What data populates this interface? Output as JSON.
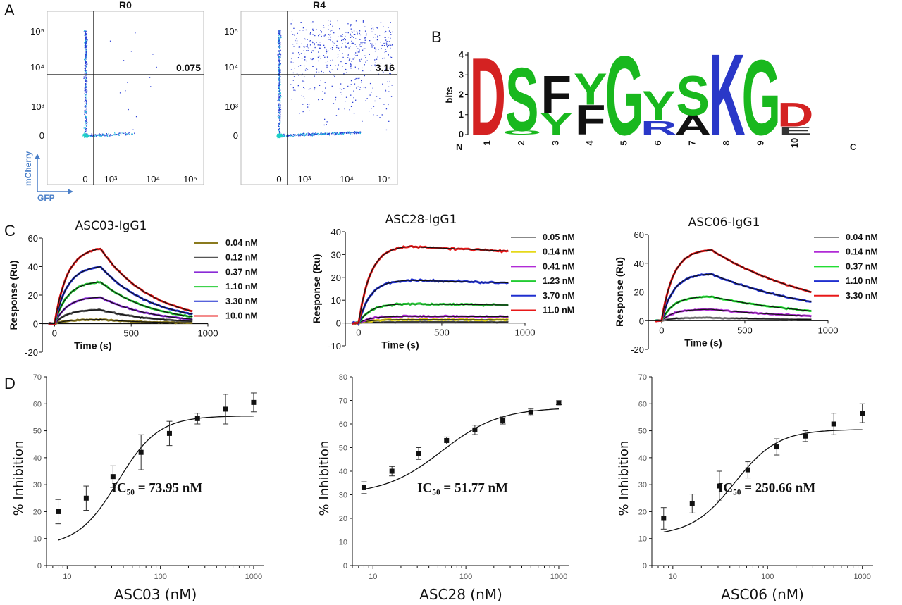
{
  "panels": {
    "A": "A",
    "B": "B",
    "C": "C",
    "D": "D"
  },
  "colors": {
    "dot_blue": "#2b3fd6",
    "dot_cyan": "#22c3e0",
    "axis_blue": "#4a7fc8"
  },
  "chart_data": [
    {
      "id": "flow_R0",
      "type": "scatter",
      "title": "R0",
      "xlabel": "GFP",
      "ylabel": "mCherry",
      "xticks": [
        "0",
        "10³",
        "10⁴",
        "10⁵"
      ],
      "yticks": [
        "10⁵",
        "10⁴",
        "10³",
        "0"
      ],
      "quadrant_value": "0.075"
    },
    {
      "id": "flow_R4",
      "type": "scatter",
      "title": "R4",
      "xticks": [
        "0",
        "10³",
        "10⁴",
        "10⁵"
      ],
      "yticks": [
        "10⁵",
        "10⁴",
        "10³",
        "0"
      ],
      "quadrant_value": "3.16"
    },
    {
      "id": "logo",
      "type": "bar",
      "title": "",
      "ylabel": "bits",
      "yticks": [
        "0",
        "1",
        "2",
        "3",
        "4"
      ],
      "positions": [
        "1",
        "2",
        "3",
        "4",
        "5",
        "6",
        "7",
        "8",
        "9",
        "10"
      ],
      "n_label": "N",
      "c_label": "C",
      "columns": [
        [
          {
            "letter": "D",
            "bits": 3.9,
            "color": "#d42222"
          }
        ],
        [
          {
            "letter": "S",
            "bits": 3.2,
            "color": "#19b81e"
          },
          {
            "letter": "O",
            "bits": 0.2,
            "color": "#19b81e"
          }
        ],
        [
          {
            "letter": "F",
            "bits": 1.9,
            "color": "#111111"
          },
          {
            "letter": "Y",
            "bits": 1.1,
            "color": "#19b81e"
          }
        ],
        [
          {
            "letter": "Y",
            "bits": 1.6,
            "color": "#19b81e"
          },
          {
            "letter": "F",
            "bits": 1.5,
            "color": "#111111"
          }
        ],
        [
          {
            "letter": "G",
            "bits": 4.0,
            "color": "#19b81e"
          }
        ],
        [
          {
            "letter": "Y",
            "bits": 1.5,
            "color": "#19b81e"
          },
          {
            "letter": "R",
            "bits": 0.7,
            "color": "#2a38c8"
          }
        ],
        [
          {
            "letter": "S",
            "bits": 2.0,
            "color": "#19b81e"
          },
          {
            "letter": "A",
            "bits": 1.0,
            "color": "#111111"
          }
        ],
        [
          {
            "letter": "K",
            "bits": 4.1,
            "color": "#2a38c8"
          }
        ],
        [
          {
            "letter": "G",
            "bits": 3.8,
            "color": "#19b81e"
          }
        ],
        [
          {
            "letter": "D",
            "bits": 1.2,
            "color": "#d42222"
          },
          {
            "letter": "E",
            "bits": 0.4,
            "color": "#333333"
          }
        ]
      ]
    },
    {
      "id": "spr_ASC03",
      "type": "line",
      "title": "ASC03-IgG1",
      "xlabel": "Time (s)",
      "ylabel": "Response (Ru)",
      "xlim": [
        -80,
        1000
      ],
      "ylim": [
        -20,
        60
      ],
      "xticks": [
        0,
        500,
        1000
      ],
      "yticks": [
        -20,
        0,
        20,
        40,
        60
      ],
      "kinetics": {
        "t_end": 900,
        "t_assoc_end": 300,
        "ka": 0.012,
        "kd": 0.003
      },
      "series": [
        {
          "name": "0.04 nM",
          "color": "#8a7a1e",
          "rmax": 3
        },
        {
          "name": "0.12 nM",
          "color": "#555555",
          "rmax": 10
        },
        {
          "name": "0.37 nM",
          "color": "#8a2bd6",
          "rmax": 19
        },
        {
          "name": "1.10 nM",
          "color": "#22cc33",
          "rmax": 30
        },
        {
          "name": "3.30 nM",
          "color": "#1f2fcf",
          "rmax": 41
        },
        {
          "name": "10.0 nM",
          "color": "#e81818",
          "rmax": 54
        }
      ]
    },
    {
      "id": "spr_ASC28",
      "type": "line",
      "title": "ASC28-IgG1",
      "xlabel": "Time (s)",
      "ylabel": "Response (Ru)",
      "xlim": [
        -80,
        1000
      ],
      "ylim": [
        -10,
        40
      ],
      "xticks": [
        0,
        500,
        1000
      ],
      "yticks": [
        -10,
        0,
        10,
        20,
        30,
        40
      ],
      "kinetics": {
        "t_end": 900,
        "t_assoc_end": 300,
        "ka": 0.014,
        "kd": 0.0001
      },
      "series": [
        {
          "name": "0.05 nM",
          "color": "#888888",
          "rmax": 0.5
        },
        {
          "name": "0.14 nM",
          "color": "#e6d81a",
          "rmax": 1.5
        },
        {
          "name": "0.41 nM",
          "color": "#b02bd6",
          "rmax": 3
        },
        {
          "name": "1.23 nM",
          "color": "#22cc33",
          "rmax": 8.5
        },
        {
          "name": "3.70 nM",
          "color": "#1f2fcf",
          "rmax": 19
        },
        {
          "name": "11.0 nM",
          "color": "#e81818",
          "rmax": 34
        }
      ]
    },
    {
      "id": "spr_ASC06",
      "type": "line",
      "title": "ASC06-IgG1",
      "xlabel": "Time (s)",
      "ylabel": "Response (Ru)",
      "xlim": [
        -80,
        1000
      ],
      "ylim": [
        -20,
        60
      ],
      "xticks": [
        0,
        500,
        1000
      ],
      "yticks": [
        -20,
        0,
        20,
        40,
        60
      ],
      "kinetics": {
        "t_end": 900,
        "t_assoc_end": 300,
        "ka": 0.014,
        "kd": 0.0015
      },
      "series": [
        {
          "name": "0.04 nM",
          "color": "#888888",
          "rmax": 2
        },
        {
          "name": "0.14 nM",
          "color": "#b02bd6",
          "rmax": 8
        },
        {
          "name": "0.37 nM",
          "color": "#22dd33",
          "rmax": 17
        },
        {
          "name": "1.10 nM",
          "color": "#1f2fcf",
          "rmax": 33
        },
        {
          "name": "3.30 nM",
          "color": "#e81818",
          "rmax": 50
        }
      ]
    },
    {
      "id": "ic50_ASC03",
      "type": "scatter",
      "title": "",
      "xlabel": "ASC03 (nM)",
      "ylabel": "% Inhibition",
      "xlim": [
        6,
        1300
      ],
      "ylim": [
        0,
        70
      ],
      "xlog": true,
      "xticks": [
        10,
        100,
        1000
      ],
      "xtick_labels": [
        "10",
        "100",
        "1000"
      ],
      "yticks": [
        0,
        10,
        20,
        30,
        40,
        50,
        60,
        70
      ],
      "annotation": "IC₅₀ = 73.95 nM",
      "fit": {
        "bottom": 7,
        "top": 55.5,
        "ec50": 35,
        "hill": 2.0
      },
      "points": [
        {
          "x": 8,
          "y": 20,
          "err": 4.5
        },
        {
          "x": 16,
          "y": 25,
          "err": 4.5
        },
        {
          "x": 31,
          "y": 33,
          "err": 4
        },
        {
          "x": 62,
          "y": 42,
          "err": 6.5
        },
        {
          "x": 125,
          "y": 49,
          "err": 4.5
        },
        {
          "x": 250,
          "y": 54.5,
          "err": 2
        },
        {
          "x": 500,
          "y": 58,
          "err": 5.5
        },
        {
          "x": 1000,
          "y": 60.5,
          "err": 3.5
        }
      ]
    },
    {
      "id": "ic50_ASC28",
      "type": "scatter",
      "title": "",
      "xlabel": "ASC28 (nM)",
      "ylabel": "% Inhibition",
      "xlim": [
        6,
        1300
      ],
      "ylim": [
        0,
        80
      ],
      "xlog": true,
      "xticks": [
        10,
        100,
        1000
      ],
      "xtick_labels": [
        "10",
        "100",
        "1000"
      ],
      "yticks": [
        0,
        10,
        20,
        30,
        40,
        50,
        60,
        70,
        80
      ],
      "annotation": "IC₅₀ = 51.77 nM",
      "fit": {
        "bottom": 30,
        "top": 67,
        "ec50": 55,
        "hill": 1.4
      },
      "points": [
        {
          "x": 8,
          "y": 33,
          "err": 2.5
        },
        {
          "x": 16,
          "y": 40,
          "err": 2
        },
        {
          "x": 31,
          "y": 47.5,
          "err": 2.5
        },
        {
          "x": 62,
          "y": 53,
          "err": 1.5
        },
        {
          "x": 125,
          "y": 57.5,
          "err": 2
        },
        {
          "x": 250,
          "y": 61.5,
          "err": 1.5
        },
        {
          "x": 500,
          "y": 65,
          "err": 1.5
        },
        {
          "x": 1000,
          "y": 69,
          "err": 0.8
        }
      ]
    },
    {
      "id": "ic50_ASC06",
      "type": "scatter",
      "title": "",
      "xlabel": "ASC06 (nM)",
      "ylabel": "% Inhibition",
      "xlim": [
        6,
        1300
      ],
      "ylim": [
        0,
        70
      ],
      "xlog": true,
      "xticks": [
        10,
        100,
        1000
      ],
      "xtick_labels": [
        "10",
        "100",
        "1000"
      ],
      "yticks": [
        0,
        10,
        20,
        30,
        40,
        50,
        60,
        70
      ],
      "annotation": "IC₅₀ = 250.66 nM",
      "fit": {
        "bottom": 11,
        "top": 50.5,
        "ec50": 45,
        "hill": 1.9
      },
      "points": [
        {
          "x": 8,
          "y": 17.5,
          "err": 4
        },
        {
          "x": 16,
          "y": 23,
          "err": 3.5
        },
        {
          "x": 31,
          "y": 29.5,
          "err": 5.5
        },
        {
          "x": 62,
          "y": 35.5,
          "err": 3
        },
        {
          "x": 125,
          "y": 44,
          "err": 3
        },
        {
          "x": 250,
          "y": 48,
          "err": 2
        },
        {
          "x": 500,
          "y": 52.5,
          "err": 4
        },
        {
          "x": 1000,
          "y": 56.5,
          "err": 3.5
        }
      ]
    }
  ]
}
